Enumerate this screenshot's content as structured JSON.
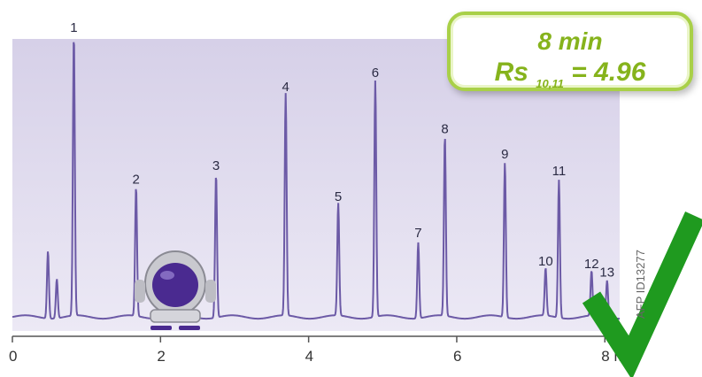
{
  "badge": {
    "time_text": "8 min",
    "rs_label": "Rs",
    "rs_subscript": "10,11",
    "rs_value": "= 4.96"
  },
  "ref_code": "AFP ID13277",
  "colors": {
    "trace": "#6c5aa6",
    "plot_background": "#ddd8ec",
    "badge_text": "#86b31c",
    "check": "#1f9a1f"
  },
  "icons": [
    "robot-mascot-icon",
    "checkmark-icon"
  ],
  "chart_data": {
    "type": "line",
    "x_unit": "min",
    "xlim": [
      0,
      8.2
    ],
    "ylim": [
      0,
      100
    ],
    "x_ticks": [
      {
        "value": 0,
        "label": "0"
      },
      {
        "value": 2,
        "label": "2"
      },
      {
        "value": 4,
        "label": "4"
      },
      {
        "value": 6,
        "label": "6"
      },
      {
        "value": 8,
        "label": "8 min"
      }
    ],
    "peaks": [
      {
        "rt": 0.48,
        "height": 24,
        "label": ""
      },
      {
        "rt": 0.6,
        "height": 14,
        "label": ""
      },
      {
        "rt": 0.83,
        "height": 100,
        "label": "1"
      },
      {
        "rt": 1.67,
        "height": 46,
        "label": "2"
      },
      {
        "rt": 2.75,
        "height": 51,
        "label": "3"
      },
      {
        "rt": 3.69,
        "height": 79,
        "label": "4"
      },
      {
        "rt": 4.4,
        "height": 40,
        "label": "5"
      },
      {
        "rt": 4.9,
        "height": 84,
        "label": "6"
      },
      {
        "rt": 5.48,
        "height": 27,
        "label": "7"
      },
      {
        "rt": 5.84,
        "height": 64,
        "label": "8"
      },
      {
        "rt": 6.65,
        "height": 55,
        "label": "9"
      },
      {
        "rt": 7.2,
        "height": 17,
        "label": "10"
      },
      {
        "rt": 7.38,
        "height": 49,
        "label": "11"
      },
      {
        "rt": 7.82,
        "height": 16,
        "label": "12"
      },
      {
        "rt": 8.03,
        "height": 13,
        "label": "13"
      }
    ]
  }
}
